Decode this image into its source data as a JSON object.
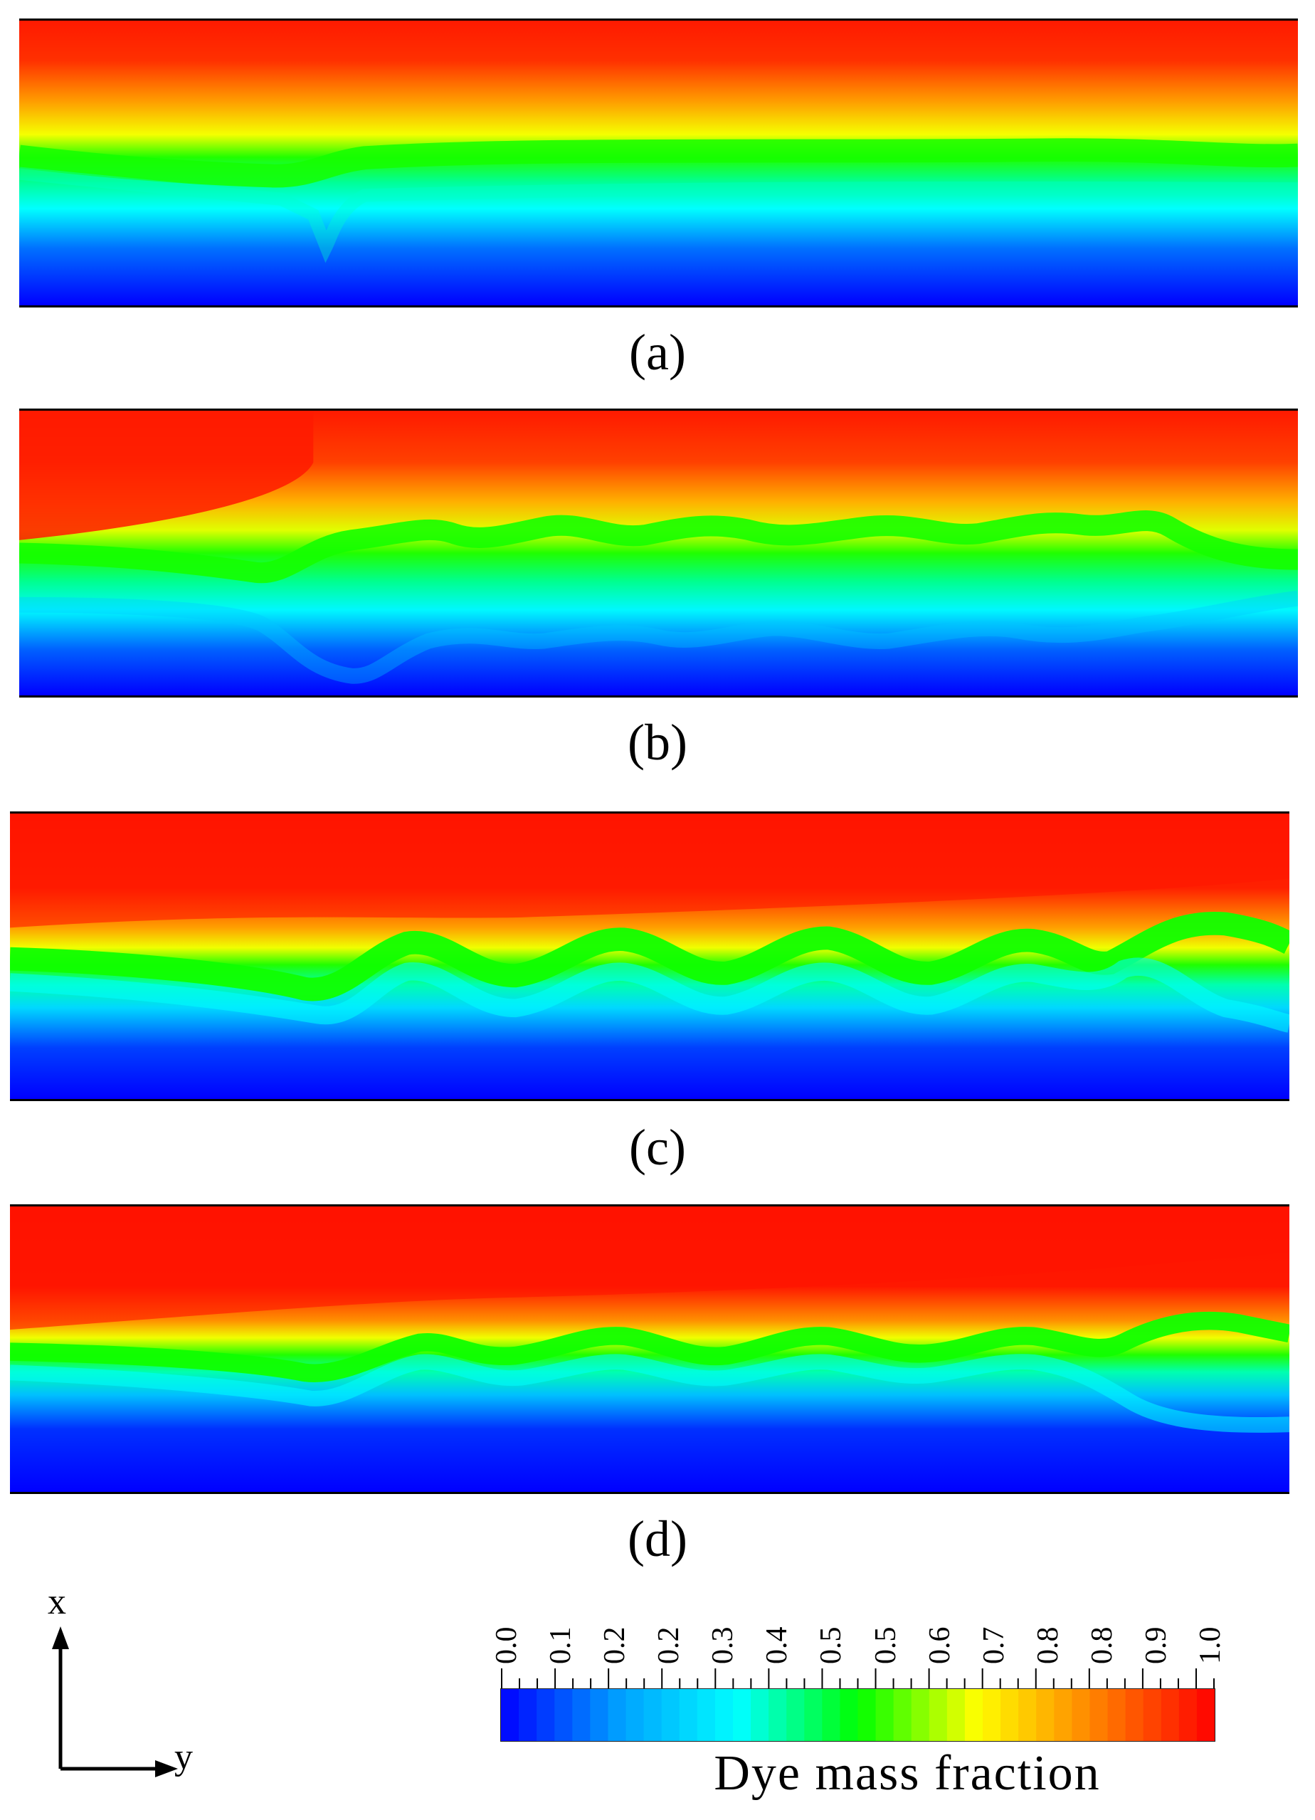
{
  "panels": [
    {
      "id": "a",
      "caption": "(a)"
    },
    {
      "id": "b",
      "caption": "(b)"
    },
    {
      "id": "c",
      "caption": "(c)"
    },
    {
      "id": "d",
      "caption": "(d)"
    }
  ],
  "colorbar": {
    "title": "Dye mass fraction",
    "tick_labels": [
      "0.0",
      "0.1",
      "0.2",
      "0.2",
      "0.3",
      "0.4",
      "0.5",
      "0.5",
      "0.6",
      "0.7",
      "0.8",
      "0.8",
      "0.9",
      "1.0"
    ],
    "range": [
      0,
      1
    ],
    "colors": [
      "#0000ff",
      "#00a0ff",
      "#00ffff",
      "#00ff00",
      "#ffff00",
      "#ff8000",
      "#ff0000"
    ]
  },
  "axes": {
    "vertical_label": "x",
    "horizontal_label": "y"
  }
}
